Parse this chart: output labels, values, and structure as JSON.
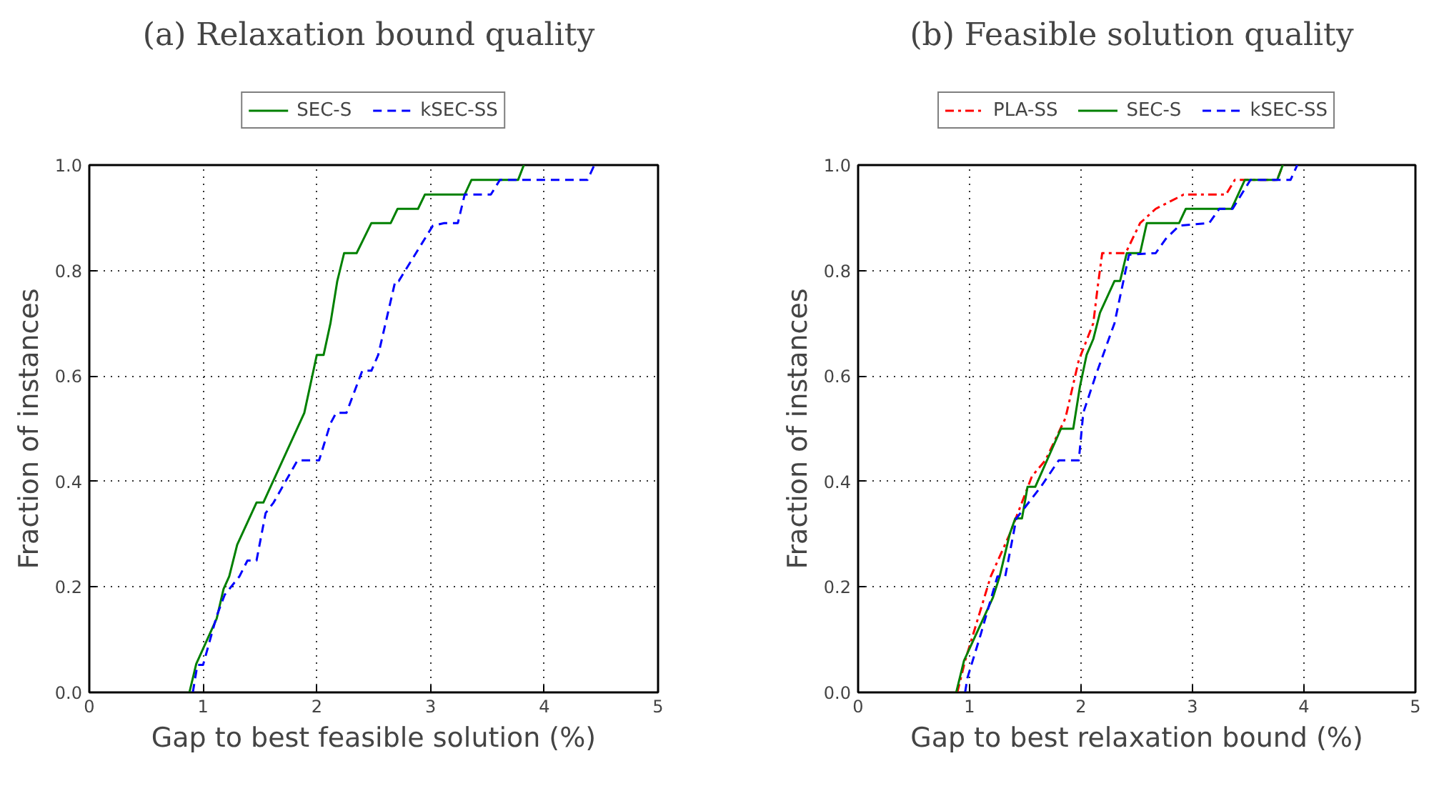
{
  "chart_data": [
    {
      "type": "line",
      "title": "(a)  Relaxation bound quality",
      "xlabel": "Gap to best feasible solution (%)",
      "ylabel": "Fraction of instances",
      "xlim": [
        0,
        5
      ],
      "ylim": [
        0,
        1
      ],
      "xticks": [
        0,
        1,
        2,
        3,
        4,
        5
      ],
      "yticks": [
        {
          "value": 0,
          "label": "0.0"
        },
        {
          "value": 0.2,
          "label": "0.2"
        },
        {
          "value": 0.4,
          "label": "0.4"
        },
        {
          "value": 0.6,
          "label": "0.6"
        },
        {
          "value": 0.8,
          "label": "0.8"
        },
        {
          "value": 1,
          "label": "1.0"
        }
      ],
      "grid": true,
      "legend": "top",
      "series": [
        {
          "name": "SEC-S",
          "color": "#008000",
          "line_style": "solid",
          "x": [
            0.88,
            0.94,
            1.12,
            1.18,
            1.23,
            1.3,
            1.47,
            1.53,
            1.89,
            2.0,
            2.06,
            2.12,
            2.18,
            2.24,
            2.35,
            2.48,
            2.65,
            2.71,
            2.89,
            2.95,
            3.3,
            3.36,
            3.77,
            3.82
          ],
          "values": [
            0,
            0.054,
            0.14,
            0.196,
            0.22,
            0.28,
            0.36,
            0.36,
            0.53,
            0.64,
            0.64,
            0.7,
            0.78,
            0.833,
            0.833,
            0.89,
            0.89,
            0.917,
            0.917,
            0.944,
            0.944,
            0.972,
            0.972,
            1.0
          ]
        },
        {
          "name": "kSEC-SS",
          "color": "#0000ff",
          "line_style": "dashed",
          "x": [
            0.91,
            0.95,
            1.0,
            1.12,
            1.19,
            1.32,
            1.39,
            1.47,
            1.55,
            1.62,
            1.83,
            2.02,
            2.12,
            2.17,
            2.26,
            2.4,
            2.48,
            2.54,
            2.69,
            2.72,
            3.02,
            3.12,
            3.24,
            3.3,
            3.53,
            3.61,
            4.38,
            4.44
          ],
          "values": [
            0,
            0.052,
            0.052,
            0.145,
            0.185,
            0.22,
            0.25,
            0.25,
            0.34,
            0.36,
            0.44,
            0.44,
            0.51,
            0.53,
            0.53,
            0.61,
            0.61,
            0.64,
            0.78,
            0.78,
            0.885,
            0.89,
            0.89,
            0.944,
            0.944,
            0.972,
            0.972,
            1.0
          ]
        }
      ]
    },
    {
      "type": "line",
      "title": "(b)  Feasible solution quality",
      "xlabel": "Gap to best relaxation bound (%)",
      "ylabel": "Fraction of instances",
      "xlim": [
        0,
        5
      ],
      "ylim": [
        0,
        1
      ],
      "xticks": [
        0,
        1,
        2,
        3,
        4,
        5
      ],
      "yticks": [
        {
          "value": 0,
          "label": "0.0"
        },
        {
          "value": 0.2,
          "label": "0.2"
        },
        {
          "value": 0.4,
          "label": "0.4"
        },
        {
          "value": 0.6,
          "label": "0.6"
        },
        {
          "value": 0.8,
          "label": "0.8"
        },
        {
          "value": 1,
          "label": "1.0"
        }
      ],
      "grid": true,
      "legend": "top",
      "series": [
        {
          "name": "PLA-SS",
          "color": "#ff0000",
          "line_style": "dashdot",
          "x": [
            0.89,
            0.96,
            1.19,
            1.36,
            1.56,
            1.68,
            1.86,
            1.98,
            2.11,
            2.15,
            2.19,
            2.4,
            2.53,
            2.67,
            2.92,
            3.3,
            3.38,
            3.76,
            3.81
          ],
          "values": [
            0,
            0.06,
            0.22,
            0.3,
            0.41,
            0.44,
            0.52,
            0.63,
            0.7,
            0.77,
            0.833,
            0.833,
            0.89,
            0.917,
            0.944,
            0.944,
            0.972,
            0.972,
            1.0
          ]
        },
        {
          "name": "SEC-S",
          "color": "#008000",
          "line_style": "solid",
          "x": [
            0.88,
            0.95,
            1.21,
            1.27,
            1.36,
            1.41,
            1.47,
            1.52,
            1.59,
            1.82,
            1.93,
            1.99,
            2.05,
            2.11,
            2.17,
            2.3,
            2.35,
            2.41,
            2.53,
            2.59,
            2.88,
            2.94,
            3.35,
            3.47,
            3.76,
            3.81
          ],
          "values": [
            0,
            0.06,
            0.18,
            0.22,
            0.3,
            0.33,
            0.33,
            0.39,
            0.39,
            0.5,
            0.5,
            0.58,
            0.64,
            0.67,
            0.72,
            0.78,
            0.78,
            0.833,
            0.833,
            0.89,
            0.89,
            0.917,
            0.917,
            0.972,
            0.972,
            1.0
          ]
        },
        {
          "name": "kSEC-SS",
          "color": "#0000ff",
          "line_style": "dashed",
          "x": [
            0.96,
            0.98,
            1.1,
            1.25,
            1.32,
            1.42,
            1.64,
            1.8,
            1.98,
            2.02,
            2.13,
            2.3,
            2.43,
            2.67,
            2.76,
            2.88,
            3.15,
            3.24,
            3.36,
            3.52,
            3.88,
            3.94
          ],
          "values": [
            0,
            0.027,
            0.11,
            0.22,
            0.22,
            0.33,
            0.39,
            0.44,
            0.44,
            0.53,
            0.6,
            0.7,
            0.83,
            0.833,
            0.86,
            0.885,
            0.89,
            0.917,
            0.917,
            0.972,
            0.972,
            1.0
          ]
        }
      ]
    }
  ]
}
